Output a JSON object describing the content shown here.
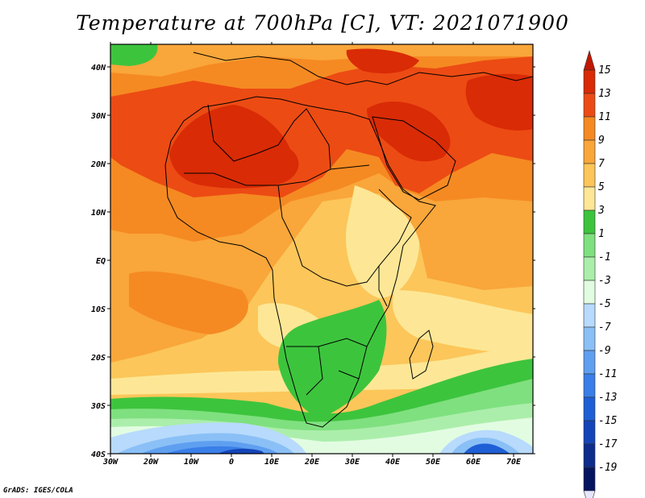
{
  "title": "Temperature at 700hPa [C], VT: 2021071900",
  "credit": "GrADS: IGES/COLA",
  "map": {
    "lon_range": [
      -30,
      75
    ],
    "lat_range": [
      -40,
      45
    ],
    "x_ticks": [
      "30W",
      "20W",
      "10W",
      "0",
      "10E",
      "20E",
      "30E",
      "40E",
      "50E",
      "60E",
      "70E"
    ],
    "y_ticks": [
      "40N",
      "30N",
      "20N",
      "10N",
      "EQ",
      "10S",
      "20S",
      "30S",
      "40S"
    ],
    "colors": {
      "c15": "#d92b06",
      "c13": "#ec4b14",
      "c11": "#f58a22",
      "c9": "#f9a63a",
      "c7": "#fcc65a",
      "c5": "#fde796",
      "c3": "#3dc43d",
      "c1": "#7fe07f",
      "cm1": "#abeeab",
      "cm3": "#e2fce2",
      "cm5": "#b8dafc",
      "cm7": "#8ac0f6",
      "cm9": "#5f9ff0",
      "cm11": "#3a7ee8",
      "cm13": "#1f5fd6",
      "cm15": "#1444b8",
      "cm17": "#0d2c8c",
      "cm19": "#061560",
      "over": "#c01800",
      "under": "#e6e6ff"
    }
  },
  "colorbar": {
    "labels": [
      "15",
      "13",
      "11",
      "9",
      "7",
      "5",
      "3",
      "1",
      "-1",
      "-3",
      "-5",
      "-7",
      "-9",
      "-11",
      "-13",
      "-15",
      "-17",
      "-19"
    ],
    "colors": [
      "#d92b06",
      "#ec4b14",
      "#f58a22",
      "#f9a63a",
      "#fcc65a",
      "#fde796",
      "#3dc43d",
      "#7fe07f",
      "#abeeab",
      "#e2fce2",
      "#b8dafc",
      "#8ac0f6",
      "#5f9ff0",
      "#3a7ee8",
      "#1f5fd6",
      "#1444b8",
      "#0d2c8c",
      "#061560"
    ]
  }
}
